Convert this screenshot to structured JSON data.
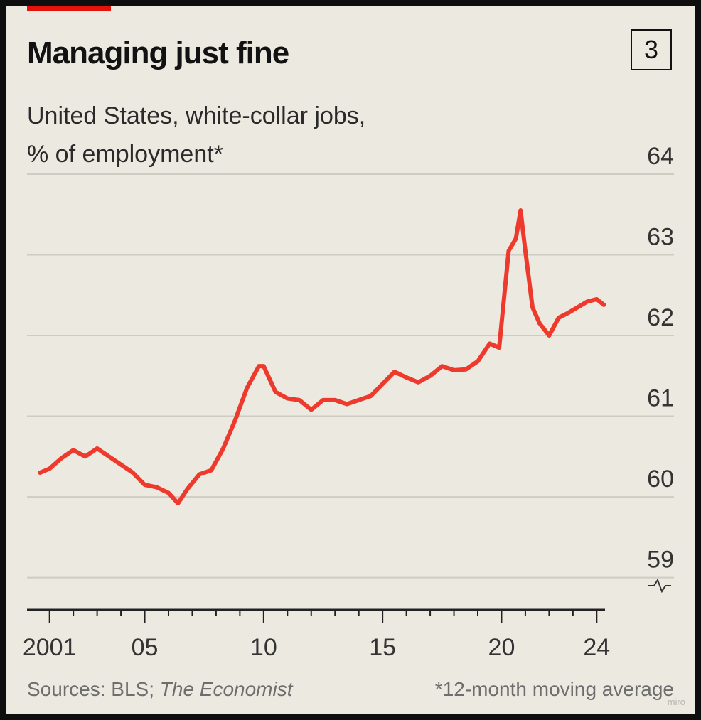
{
  "header": {
    "title": "Managing just fine",
    "badge": "3",
    "subtitle_line1": "United States, white-collar jobs,",
    "subtitle_line2": "% of employment*"
  },
  "footer": {
    "sources_prefix": "Sources: BLS; ",
    "sources_italic": "The Economist",
    "note": "*12-month moving average"
  },
  "watermark": "miro",
  "colors": {
    "line": "#ee3a2c",
    "accent": "#e3120b",
    "grid": "#cfccc4",
    "background": "#ece9e1"
  },
  "chart_data": {
    "type": "line",
    "title": "Managing just fine",
    "ylabel": "% of employment*",
    "ylim": [
      58.6,
      64
    ],
    "y_ticks": [
      "59",
      "60",
      "61",
      "62",
      "63",
      "64"
    ],
    "y_tick_values": [
      59,
      60,
      61,
      62,
      63,
      64
    ],
    "x_ticks": [
      "2001",
      "05",
      "10",
      "15",
      "20",
      "24"
    ],
    "x_tick_values": [
      2001,
      2005,
      2010,
      2015,
      2020,
      2024
    ],
    "axis_break": true,
    "grid": true,
    "series": [
      {
        "x": [
          2000.6,
          2001.0,
          2001.5,
          2002.0,
          2002.5,
          2003.0,
          2003.5,
          2004.0,
          2004.5,
          2005.0,
          2005.5,
          2006.0,
          2006.4,
          2006.8,
          2007.3,
          2007.8,
          2008.3,
          2008.8,
          2009.3,
          2009.8,
          2010.0,
          2010.5,
          2011.0,
          2011.5,
          2012.0,
          2012.5,
          2013.0,
          2013.5,
          2014.0,
          2014.5,
          2015.0,
          2015.5,
          2016.0,
          2016.5,
          2017.0,
          2017.5,
          2018.0,
          2018.5,
          2019.0,
          2019.5,
          2019.9,
          2020.3,
          2020.6,
          2020.8,
          2021.0,
          2021.3,
          2021.6,
          2022.0,
          2022.4,
          2022.8,
          2023.2,
          2023.6,
          2024.0,
          2024.3
        ],
        "values": [
          60.3,
          60.35,
          60.48,
          60.58,
          60.5,
          60.6,
          60.5,
          60.4,
          60.3,
          60.15,
          60.12,
          60.05,
          59.92,
          60.1,
          60.28,
          60.33,
          60.6,
          60.95,
          61.35,
          61.62,
          61.62,
          61.3,
          61.22,
          61.2,
          61.08,
          61.2,
          61.2,
          61.15,
          61.2,
          61.25,
          61.4,
          61.55,
          61.48,
          61.42,
          61.5,
          61.62,
          61.57,
          61.58,
          61.68,
          61.9,
          61.85,
          63.05,
          63.2,
          63.55,
          63.05,
          62.35,
          62.15,
          62.0,
          62.22,
          62.28,
          62.35,
          62.42,
          62.45,
          62.38
        ]
      }
    ]
  }
}
